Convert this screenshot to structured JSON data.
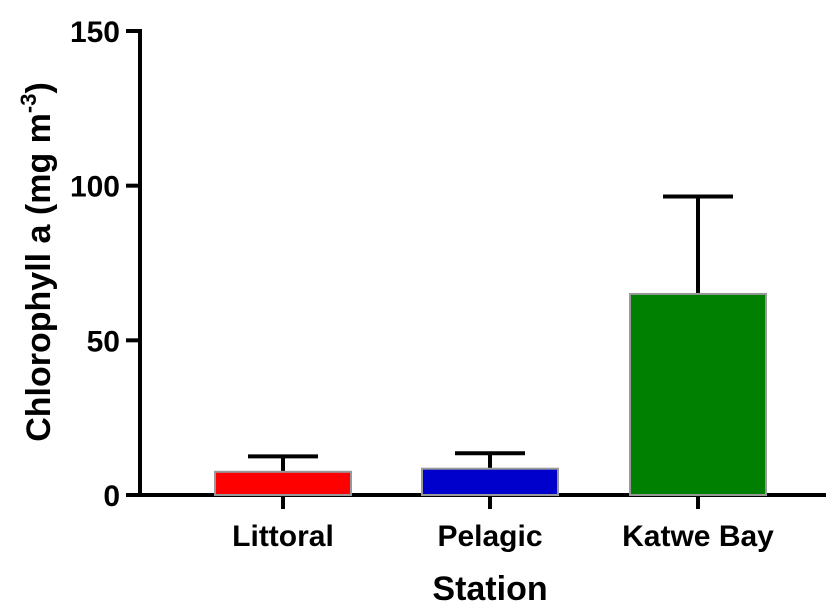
{
  "chart_data": {
    "type": "bar",
    "xlabel": "Station",
    "ylabel": {
      "text": "Chlorophyll a (mg m",
      "sup": "-3",
      "close": ")"
    },
    "categories": [
      "Littoral",
      "Pelagic",
      "Katwe Bay"
    ],
    "values": [
      7.5,
      8.5,
      65
    ],
    "error_upper": [
      12.5,
      13.5,
      96.5
    ],
    "colors": [
      "#ff0000",
      "#0000cc",
      "#008000"
    ],
    "ylim": [
      0,
      150
    ],
    "yticks": [
      0,
      50,
      100,
      150
    ],
    "grid": false
  }
}
